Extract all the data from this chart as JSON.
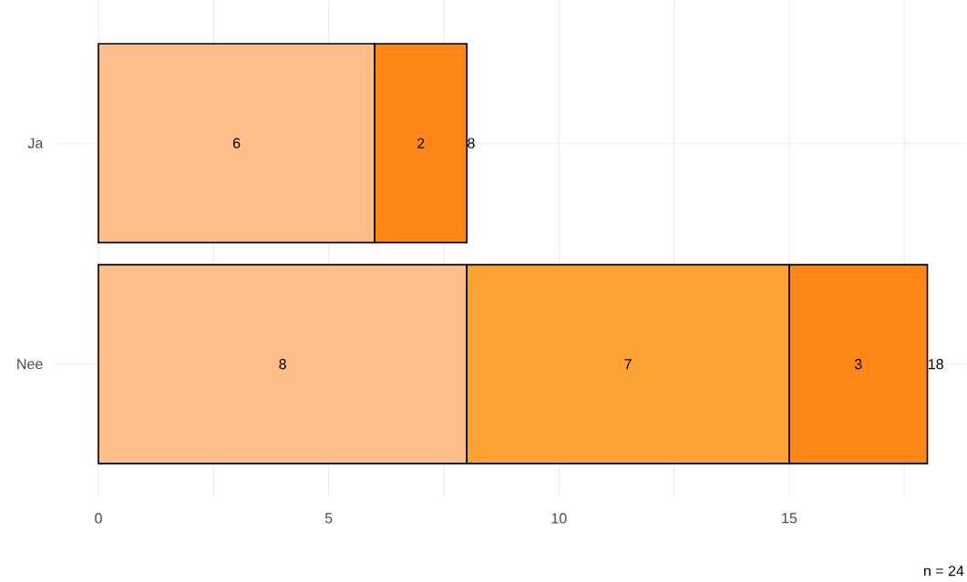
{
  "chart_data": {
    "type": "bar",
    "orientation": "horizontal",
    "stacked": true,
    "categories": [
      "Ja",
      "Nee"
    ],
    "series": [
      {
        "color": "#fdbe8a",
        "values": [
          6,
          8
        ]
      },
      {
        "color": "#fda333",
        "values": [
          null,
          7
        ]
      },
      {
        "color": "#fd8617",
        "values": [
          2,
          3
        ]
      }
    ],
    "totals": [
      "8",
      "18"
    ],
    "data_labels": true,
    "grid": true,
    "xlim": [
      -0.95,
      18.85
    ],
    "xticks": [
      0,
      5,
      10,
      15,
      {
        "value": 2.5,
        "label": null
      },
      {
        "value": 7.5,
        "label": null
      },
      {
        "value": 12.5,
        "label": null
      },
      {
        "value": 17.5,
        "label": null
      }
    ],
    "annotations": [
      "n = 24"
    ]
  }
}
